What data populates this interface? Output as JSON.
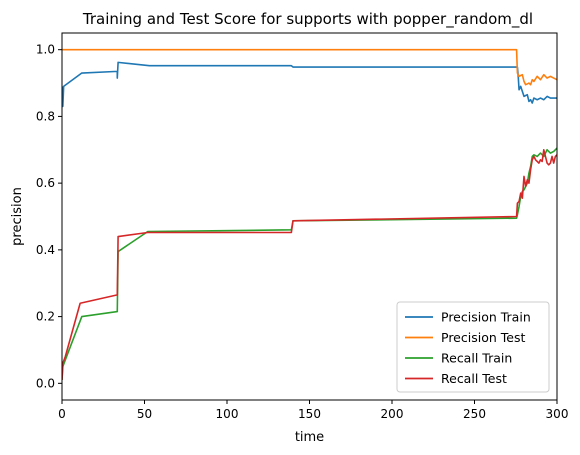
{
  "chart_data": {
    "type": "line",
    "title": "Training and Test Score for supports with popper_random_dl",
    "xlabel": "time",
    "ylabel": "precision",
    "xlim": [
      0,
      300
    ],
    "ylim": [
      -0.05,
      1.05
    ],
    "xticks": [
      "0",
      "50",
      "100",
      "150",
      "200",
      "250",
      "300"
    ],
    "yticks": [
      "0.0",
      "0.2",
      "0.4",
      "0.6",
      "0.8",
      "1.0"
    ],
    "grid": false,
    "legend_position": "lower-right",
    "series": [
      {
        "name": "Precision Train",
        "color": "#1f77b4",
        "points": [
          [
            0,
            0.89
          ],
          [
            0.5,
            0.83
          ],
          [
            1,
            0.89
          ],
          [
            12,
            0.93
          ],
          [
            33.5,
            0.935
          ],
          [
            33.5,
            0.915
          ],
          [
            34,
            0.962
          ],
          [
            53,
            0.952
          ],
          [
            139,
            0.952
          ],
          [
            140,
            0.948
          ],
          [
            276,
            0.948
          ],
          [
            276.5,
            0.92
          ],
          [
            277,
            0.88
          ],
          [
            278,
            0.89
          ],
          [
            279,
            0.875
          ],
          [
            280,
            0.86
          ],
          [
            282,
            0.865
          ],
          [
            283,
            0.845
          ],
          [
            284,
            0.85
          ],
          [
            285,
            0.84
          ],
          [
            286,
            0.855
          ],
          [
            288,
            0.85
          ],
          [
            290,
            0.855
          ],
          [
            292,
            0.85
          ],
          [
            294,
            0.86
          ],
          [
            296,
            0.855
          ],
          [
            298,
            0.855
          ],
          [
            300,
            0.855
          ]
        ]
      },
      {
        "name": "Precision Test",
        "color": "#ff7f0e",
        "points": [
          [
            0,
            1.0
          ],
          [
            275.5,
            1.0
          ],
          [
            276,
            0.93
          ],
          [
            277,
            0.92
          ],
          [
            279,
            0.925
          ],
          [
            280,
            0.905
          ],
          [
            281,
            0.895
          ],
          [
            283,
            0.9
          ],
          [
            284,
            0.895
          ],
          [
            285,
            0.91
          ],
          [
            286,
            0.905
          ],
          [
            288,
            0.92
          ],
          [
            290,
            0.91
          ],
          [
            292,
            0.925
          ],
          [
            294,
            0.915
          ],
          [
            296,
            0.92
          ],
          [
            298,
            0.915
          ],
          [
            300,
            0.91
          ]
        ]
      },
      {
        "name": "Recall Train",
        "color": "#2ca02c",
        "points": [
          [
            0,
            0.01
          ],
          [
            0.5,
            0.05
          ],
          [
            2,
            0.07
          ],
          [
            12,
            0.2
          ],
          [
            33.5,
            0.215
          ],
          [
            34,
            0.395
          ],
          [
            52,
            0.455
          ],
          [
            139,
            0.46
          ],
          [
            140,
            0.487
          ],
          [
            275.5,
            0.495
          ],
          [
            276,
            0.505
          ],
          [
            277,
            0.53
          ],
          [
            278,
            0.56
          ],
          [
            279,
            0.575
          ],
          [
            280,
            0.58
          ],
          [
            281,
            0.59
          ],
          [
            282,
            0.6
          ],
          [
            283,
            0.63
          ],
          [
            284,
            0.65
          ],
          [
            285,
            0.68
          ],
          [
            286,
            0.685
          ],
          [
            288,
            0.68
          ],
          [
            290,
            0.69
          ],
          [
            292,
            0.68
          ],
          [
            294,
            0.7
          ],
          [
            296,
            0.69
          ],
          [
            298,
            0.695
          ],
          [
            300,
            0.705
          ]
        ]
      },
      {
        "name": "Recall Test",
        "color": "#d62728",
        "points": [
          [
            0,
            0.01
          ],
          [
            0.5,
            0.06
          ],
          [
            2,
            0.08
          ],
          [
            11,
            0.24
          ],
          [
            33.5,
            0.265
          ],
          [
            34,
            0.44
          ],
          [
            52,
            0.452
          ],
          [
            139,
            0.452
          ],
          [
            140,
            0.487
          ],
          [
            275.5,
            0.5
          ],
          [
            276,
            0.54
          ],
          [
            277,
            0.545
          ],
          [
            278,
            0.57
          ],
          [
            279,
            0.555
          ],
          [
            280,
            0.62
          ],
          [
            281,
            0.59
          ],
          [
            282,
            0.61
          ],
          [
            283,
            0.6
          ],
          [
            284,
            0.64
          ],
          [
            285,
            0.67
          ],
          [
            286,
            0.68
          ],
          [
            287,
            0.67
          ],
          [
            288,
            0.665
          ],
          [
            289,
            0.66
          ],
          [
            290,
            0.67
          ],
          [
            291,
            0.665
          ],
          [
            292,
            0.7
          ],
          [
            293,
            0.68
          ],
          [
            294,
            0.66
          ],
          [
            295,
            0.655
          ],
          [
            296,
            0.66
          ],
          [
            297,
            0.68
          ],
          [
            298,
            0.66
          ],
          [
            299,
            0.68
          ],
          [
            300,
            0.685
          ]
        ]
      }
    ]
  }
}
